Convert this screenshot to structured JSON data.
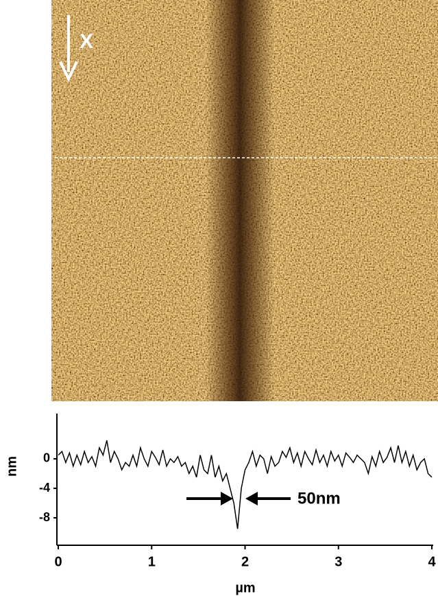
{
  "image": {
    "direction_label": "X"
  },
  "chart_data": {
    "type": "line",
    "ylabel": "nm",
    "xlabel": "µm",
    "annotation": "50nm",
    "color": "#000000",
    "xlim": [
      0,
      4
    ],
    "xticks": [
      0,
      1,
      2,
      3,
      4
    ],
    "ylim": [
      -11.7,
      6.1
    ],
    "yticks": [
      -8,
      -4,
      0
    ],
    "x": [
      0,
      0.04,
      0.08,
      0.12,
      0.16,
      0.2,
      0.24,
      0.28,
      0.32,
      0.36,
      0.4,
      0.44,
      0.48,
      0.52,
      0.56,
      0.6,
      0.64,
      0.68,
      0.72,
      0.76,
      0.8,
      0.84,
      0.88,
      0.92,
      0.96,
      1,
      1.04,
      1.08,
      1.12,
      1.16,
      1.2,
      1.24,
      1.28,
      1.32,
      1.36,
      1.4,
      1.44,
      1.48,
      1.52,
      1.56,
      1.6,
      1.64,
      1.68,
      1.72,
      1.76,
      1.8,
      1.84,
      1.88,
      1.92,
      1.96,
      2,
      2.04,
      2.08,
      2.12,
      2.16,
      2.2,
      2.24,
      2.28,
      2.32,
      2.36,
      2.4,
      2.44,
      2.48,
      2.52,
      2.56,
      2.6,
      2.64,
      2.68,
      2.72,
      2.76,
      2.8,
      2.84,
      2.88,
      2.92,
      2.96,
      3,
      3.04,
      3.08,
      3.12,
      3.16,
      3.2,
      3.24,
      3.28,
      3.32,
      3.36,
      3.4,
      3.44,
      3.48,
      3.52,
      3.56,
      3.6,
      3.64,
      3.68,
      3.72,
      3.76,
      3.8,
      3.84,
      3.88,
      3.92,
      3.96,
      4
    ],
    "values": [
      0.5,
      1,
      -0.5,
      0.8,
      -1,
      0.5,
      -0.8,
      1,
      -0.5,
      0.3,
      -1,
      1.5,
      0.5,
      2.5,
      -0.5,
      1,
      0,
      -1.5,
      -0.5,
      -1,
      0.5,
      -1,
      1.5,
      0,
      -1,
      1,
      0.2,
      -0.8,
      1.2,
      -1,
      0,
      -0.5,
      0.3,
      -1,
      -0.5,
      -2,
      -1,
      -2.5,
      0.5,
      -1.5,
      -2,
      0.5,
      -2.5,
      -1,
      -3,
      -2,
      -4,
      -6,
      -9.5,
      -4,
      -1.5,
      -0.5,
      1,
      -1,
      0.5,
      0,
      -2,
      0.3,
      -1,
      -0.5,
      1,
      0.2,
      1.5,
      -0.5,
      0.8,
      -1,
      1,
      0,
      -0.8,
      1.2,
      -0.5,
      0.5,
      -1,
      1,
      -0.3,
      0.5,
      -1,
      0.8,
      0.2,
      -0.5,
      0.5,
      0,
      -0.5,
      -2,
      0.3,
      -1,
      1,
      -0.5,
      0.2,
      1.5,
      -0.5,
      1.8,
      -0.5,
      1,
      -1,
      0.5,
      -1.5,
      -0.5,
      0,
      -2,
      -2.5
    ]
  }
}
